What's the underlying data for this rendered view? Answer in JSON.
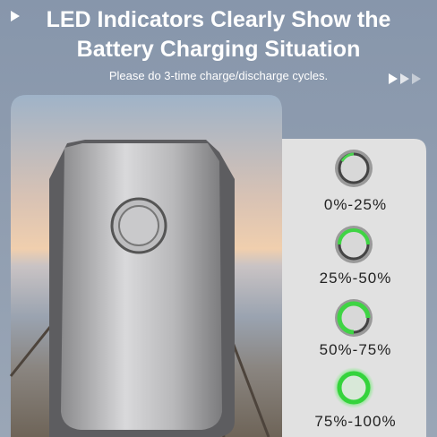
{
  "header": {
    "title_lines": [
      "LED Indicators Clearly Show the",
      "Battery Charging Situation"
    ],
    "subtitle": "Please do 3-time charge/discharge cycles."
  },
  "indicators": [
    {
      "label": "0%-25%"
    },
    {
      "label": "25%-50%"
    },
    {
      "label": "50%-75%"
    },
    {
      "label": "75%-100%"
    }
  ]
}
